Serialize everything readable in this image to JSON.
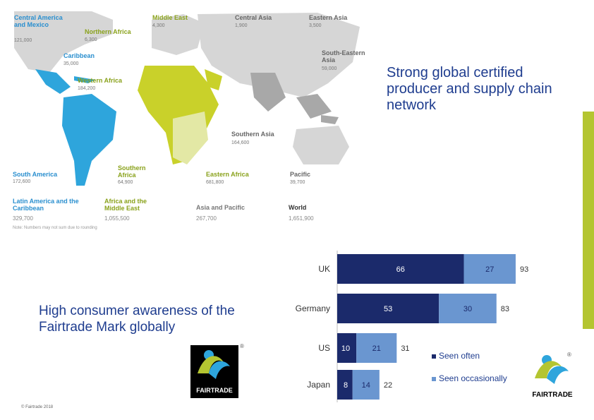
{
  "map": {
    "regions": [
      {
        "key": "central_america",
        "label": "Central America and Mexico",
        "value": "121,000",
        "color": "blue"
      },
      {
        "key": "middle_east",
        "label": "Middle East",
        "value": "4,300",
        "color": "green"
      },
      {
        "key": "central_asia",
        "label": "Central Asia",
        "value": "1,900",
        "color": "grey"
      },
      {
        "key": "eastern_asia",
        "label": "Eastern Asia",
        "value": "3,500",
        "color": "grey"
      },
      {
        "key": "northern_africa",
        "label": "Northern Africa",
        "value": "6,300",
        "color": "green"
      },
      {
        "key": "caribbean",
        "label": "Caribbean",
        "value": "35,000",
        "color": "blue"
      },
      {
        "key": "se_asia",
        "label": "South-Eastern Asia",
        "value": "59,000",
        "color": "grey"
      },
      {
        "key": "western_africa",
        "label": "Western Africa",
        "value": "184,200",
        "color": "green"
      },
      {
        "key": "southern_asia",
        "label": "Southern Asia",
        "value": "164,600",
        "color": "grey"
      },
      {
        "key": "south_america",
        "label": "South America",
        "value": "172,600",
        "color": "blue"
      },
      {
        "key": "southern_africa",
        "label": "Southern Africa",
        "value": "64,900",
        "color": "green"
      },
      {
        "key": "eastern_africa",
        "label": "Eastern Africa",
        "value": "681,800",
        "color": "green"
      },
      {
        "key": "pacific",
        "label": "Pacific",
        "value": "39,700",
        "color": "grey"
      }
    ],
    "totals": [
      {
        "label": "Latin America and the Caribbean",
        "value": "329,700",
        "color": "#2a8fcf"
      },
      {
        "label": "Africa and the Middle East",
        "value": "1,055,500",
        "color": "#8aa21c"
      },
      {
        "label": "Asia and Pacific",
        "value": "267,700",
        "color": "#777777"
      },
      {
        "label": "World",
        "value": "1,651,900",
        "color": "#333333"
      }
    ],
    "note": "Note: Numbers may not sum due to rounding",
    "colors": {
      "blue": "#2ea5dc",
      "green": "#c9d12a",
      "light_green": "#e3e8a5",
      "grey": "#cfcfcf",
      "dark_grey": "#a8a8a8"
    }
  },
  "headings": {
    "network": "Strong global certified producer and supply chain network",
    "awareness": "High consumer awareness of the Fairtrade Mark globally"
  },
  "logo": {
    "text": "FAIRTRADE",
    "registered": "®"
  },
  "copyright": "© Fairtrade 2018",
  "chart_data": {
    "type": "bar",
    "orientation": "horizontal",
    "stacked": true,
    "categories": [
      "UK",
      "Germany",
      "US",
      "Japan"
    ],
    "series": [
      {
        "name": "Seen often",
        "values": [
          66,
          53,
          10,
          8
        ],
        "color": "#1b2a6b"
      },
      {
        "name": "Seen occasionally",
        "values": [
          27,
          30,
          21,
          14
        ],
        "color": "#6a96d0"
      }
    ],
    "totals": [
      93,
      83,
      31,
      22
    ],
    "xlim": [
      0,
      100
    ],
    "legend": "right",
    "grid": false
  }
}
